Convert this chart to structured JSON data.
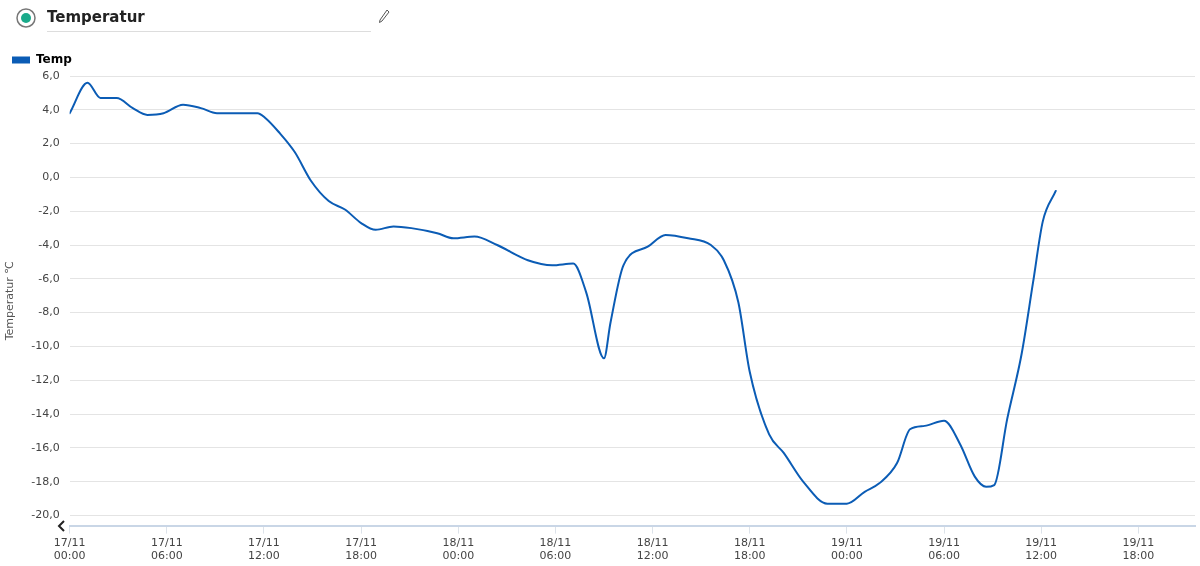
{
  "chart_data": {
    "type": "line",
    "title": "Temperatur",
    "ylabel": "Temperatur ℃",
    "legend": "top left",
    "grid": "y",
    "marker": "none",
    "line_style": "solid",
    "xlim": [
      "--11-17T00:00",
      "--11-19T21:30"
    ],
    "xticks": [
      {
        "value": "--11-17T00:00",
        "label": "17/11 00:00"
      },
      {
        "value": "--11-17T06:00",
        "label": "17/11 06:00"
      },
      {
        "value": "--11-17T12:00",
        "label": "17/11 12:00"
      },
      {
        "value": "--11-17T18:00",
        "label": "17/11 18:00"
      },
      {
        "value": "--11-18T00:00",
        "label": "18/11 00:00"
      },
      {
        "value": "--11-18T06:00",
        "label": "18/11 06:00"
      },
      {
        "value": "--11-18T12:00",
        "label": "18/11 12:00"
      },
      {
        "value": "--11-18T18:00",
        "label": "18/11 18:00"
      },
      {
        "value": "--11-19T00:00",
        "label": "19/11 00:00"
      },
      {
        "value": "--11-19T06:00",
        "label": "19/11 06:00"
      },
      {
        "value": "--11-19T12:00",
        "label": "19/11 12:00"
      },
      {
        "value": "--11-19T18:00",
        "label": "19/11 18:00"
      }
    ],
    "ylim": [
      -20.6,
      6
    ],
    "yticks": [
      {
        "value": -20,
        "label": "-20,0"
      },
      {
        "value": -18,
        "label": "-18,0"
      },
      {
        "value": -16,
        "label": "-16,0"
      },
      {
        "value": -14,
        "label": "-14,0"
      },
      {
        "value": -12,
        "label": "-12,0"
      },
      {
        "value": -10,
        "label": "-10,0"
      },
      {
        "value": -8,
        "label": "-8,0"
      },
      {
        "value": -6,
        "label": "-6,0"
      },
      {
        "value": -4,
        "label": "-4,0"
      },
      {
        "value": -2,
        "label": "-2,0"
      },
      {
        "value": 0,
        "label": "0,0"
      },
      {
        "value": 2,
        "label": "2,0"
      },
      {
        "value": 4,
        "label": "4,0"
      },
      {
        "value": 6,
        "label": "6,0"
      }
    ],
    "series": [
      {
        "name": "Temp",
        "color": "#0b5cb5",
        "x": [
          "--11-17T00:00",
          "--11-17T01:06",
          "--11-17T01:54",
          "--11-17T02:54",
          "--11-17T03:54",
          "--11-17T04:48",
          "--11-17T05:48",
          "--11-17T07:00",
          "--11-17T08:06",
          "--11-17T09:06",
          "--11-17T11:36",
          "--11-17T12:06",
          "--11-17T12:54",
          "--11-17T13:54",
          "--11-17T14:54",
          "--11-17T16:00",
          "--11-17T17:00",
          "--11-17T18:00",
          "--11-17T18:54",
          "--11-17T20:00",
          "--11-17T21:06",
          "--11-17T22:42",
          "--11-17T23:42",
          "--11-18T01:00",
          "--11-18T02:24",
          "--11-18T04:18",
          "--11-18T05:48",
          "--11-18T07:06",
          "--11-18T07:54",
          "--11-18T09:00",
          "--11-18T09:24",
          "--11-18T10:12",
          "--11-18T11:42",
          "--11-18T12:48",
          "--11-18T14:12",
          "--11-18T15:36",
          "--11-18T16:24",
          "--11-18T17:18",
          "--11-18T18:00",
          "--11-18T19:12",
          "--11-18T20:06",
          "--11-18T21:18",
          "--11-18T22:48",
          "--11-19T00:00",
          "--11-19T01:06",
          "--11-19T02:00",
          "--11-19T03:06",
          "--11-19T03:54",
          "--11-19T04:48",
          "--11-19T06:00",
          "--11-19T07:00",
          "--11-19T07:54",
          "--11-19T08:36",
          "--11-19T09:06",
          "--11-19T09:54",
          "--11-19T10:48",
          "--11-19T11:30",
          "--11-19T12:06",
          "--11-19T12:54"
        ],
        "values": [
          3.8,
          5.6,
          4.7,
          4.7,
          4.1,
          3.7,
          3.8,
          4.3,
          4.1,
          3.8,
          3.8,
          3.5,
          2.7,
          1.5,
          -0.2,
          -1.4,
          -1.9,
          -2.7,
          -3.1,
          -2.9,
          -3.0,
          -3.3,
          -3.6,
          -3.5,
          -4.0,
          -4.9,
          -5.2,
          -5.1,
          -6.8,
          -10.7,
          -8.6,
          -5.2,
          -4.1,
          -3.4,
          -3.6,
          -4.0,
          -4.9,
          -7.4,
          -11.5,
          -15.2,
          -16.3,
          -18.0,
          -19.3,
          -19.3,
          -18.6,
          -18.1,
          -16.9,
          -14.9,
          -14.7,
          -14.4,
          -15.8,
          -17.7,
          -18.3,
          -18.2,
          -14.3,
          -10.4,
          -6.2,
          -2.6,
          -0.8
        ]
      }
    ]
  }
}
